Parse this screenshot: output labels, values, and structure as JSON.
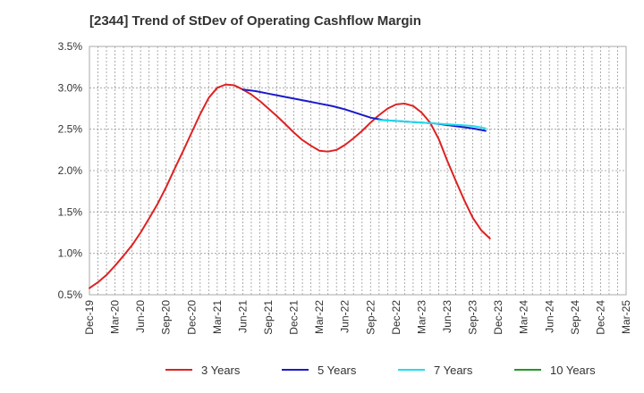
{
  "chart_data": {
    "type": "line",
    "title": "[2344]  Trend of StDev of Operating Cashflow Margin",
    "xlabel": "",
    "ylabel": "",
    "ylim": [
      0.5,
      3.5
    ],
    "y_ticks": [
      "0.5%",
      "1.0%",
      "1.5%",
      "2.0%",
      "2.5%",
      "3.0%",
      "3.5%"
    ],
    "x_tick_labels": [
      "Dec-19",
      "Mar-20",
      "Jun-20",
      "Sep-20",
      "Dec-20",
      "Mar-21",
      "Jun-21",
      "Sep-21",
      "Dec-21",
      "Mar-22",
      "Jun-22",
      "Sep-22",
      "Dec-22",
      "Mar-23",
      "Jun-23",
      "Sep-23",
      "Dec-23",
      "Mar-24",
      "Jun-24",
      "Sep-24",
      "Dec-24",
      "Mar-25"
    ],
    "grid": true,
    "legend_position": "bottom",
    "series": [
      {
        "name": "3 Years",
        "color": "#dd2222",
        "points": [
          [
            0,
            0.58
          ],
          [
            0.33,
            0.65
          ],
          [
            0.67,
            0.74
          ],
          [
            1,
            0.85
          ],
          [
            1.33,
            0.97
          ],
          [
            1.67,
            1.1
          ],
          [
            2,
            1.25
          ],
          [
            2.33,
            1.42
          ],
          [
            2.67,
            1.6
          ],
          [
            3,
            1.8
          ],
          [
            3.33,
            2.02
          ],
          [
            3.67,
            2.24
          ],
          [
            4,
            2.46
          ],
          [
            4.33,
            2.68
          ],
          [
            4.67,
            2.88
          ],
          [
            5,
            3.0
          ],
          [
            5.33,
            3.04
          ],
          [
            5.67,
            3.03
          ],
          [
            6,
            2.98
          ],
          [
            6.33,
            2.92
          ],
          [
            6.67,
            2.84
          ],
          [
            7,
            2.75
          ],
          [
            7.33,
            2.66
          ],
          [
            7.67,
            2.56
          ],
          [
            8,
            2.46
          ],
          [
            8.33,
            2.37
          ],
          [
            8.67,
            2.3
          ],
          [
            9,
            2.24
          ],
          [
            9.33,
            2.23
          ],
          [
            9.67,
            2.25
          ],
          [
            10,
            2.31
          ],
          [
            10.33,
            2.39
          ],
          [
            10.67,
            2.48
          ],
          [
            11,
            2.58
          ],
          [
            11.33,
            2.67
          ],
          [
            11.67,
            2.75
          ],
          [
            12,
            2.8
          ],
          [
            12.33,
            2.81
          ],
          [
            12.67,
            2.78
          ],
          [
            13,
            2.7
          ],
          [
            13.33,
            2.58
          ],
          [
            13.67,
            2.38
          ],
          [
            14,
            2.12
          ],
          [
            14.33,
            1.88
          ],
          [
            14.67,
            1.64
          ],
          [
            15,
            1.43
          ],
          [
            15.33,
            1.28
          ],
          [
            15.67,
            1.18
          ]
        ]
      },
      {
        "name": "5 Years",
        "color": "#1a1acc",
        "points": [
          [
            6,
            2.98
          ],
          [
            6.5,
            2.96
          ],
          [
            7,
            2.93
          ],
          [
            7.5,
            2.9
          ],
          [
            8,
            2.87
          ],
          [
            8.5,
            2.84
          ],
          [
            9,
            2.81
          ],
          [
            9.5,
            2.78
          ],
          [
            10,
            2.74
          ],
          [
            10.5,
            2.69
          ],
          [
            11,
            2.64
          ],
          [
            11.5,
            2.61
          ],
          [
            12,
            2.6
          ],
          [
            12.5,
            2.59
          ],
          [
            13,
            2.58
          ],
          [
            13.5,
            2.57
          ],
          [
            14,
            2.55
          ],
          [
            14.5,
            2.53
          ],
          [
            15,
            2.51
          ],
          [
            15.5,
            2.48
          ]
        ]
      },
      {
        "name": "7 Years",
        "color": "#22ddee",
        "points": [
          [
            11.33,
            2.61
          ],
          [
            12,
            2.6
          ],
          [
            12.5,
            2.59
          ],
          [
            13,
            2.58
          ],
          [
            13.5,
            2.57
          ],
          [
            14,
            2.56
          ],
          [
            14.5,
            2.55
          ],
          [
            15,
            2.54
          ],
          [
            15.5,
            2.51
          ]
        ]
      },
      {
        "name": "10 Years",
        "color": "#229922",
        "points": []
      }
    ]
  }
}
